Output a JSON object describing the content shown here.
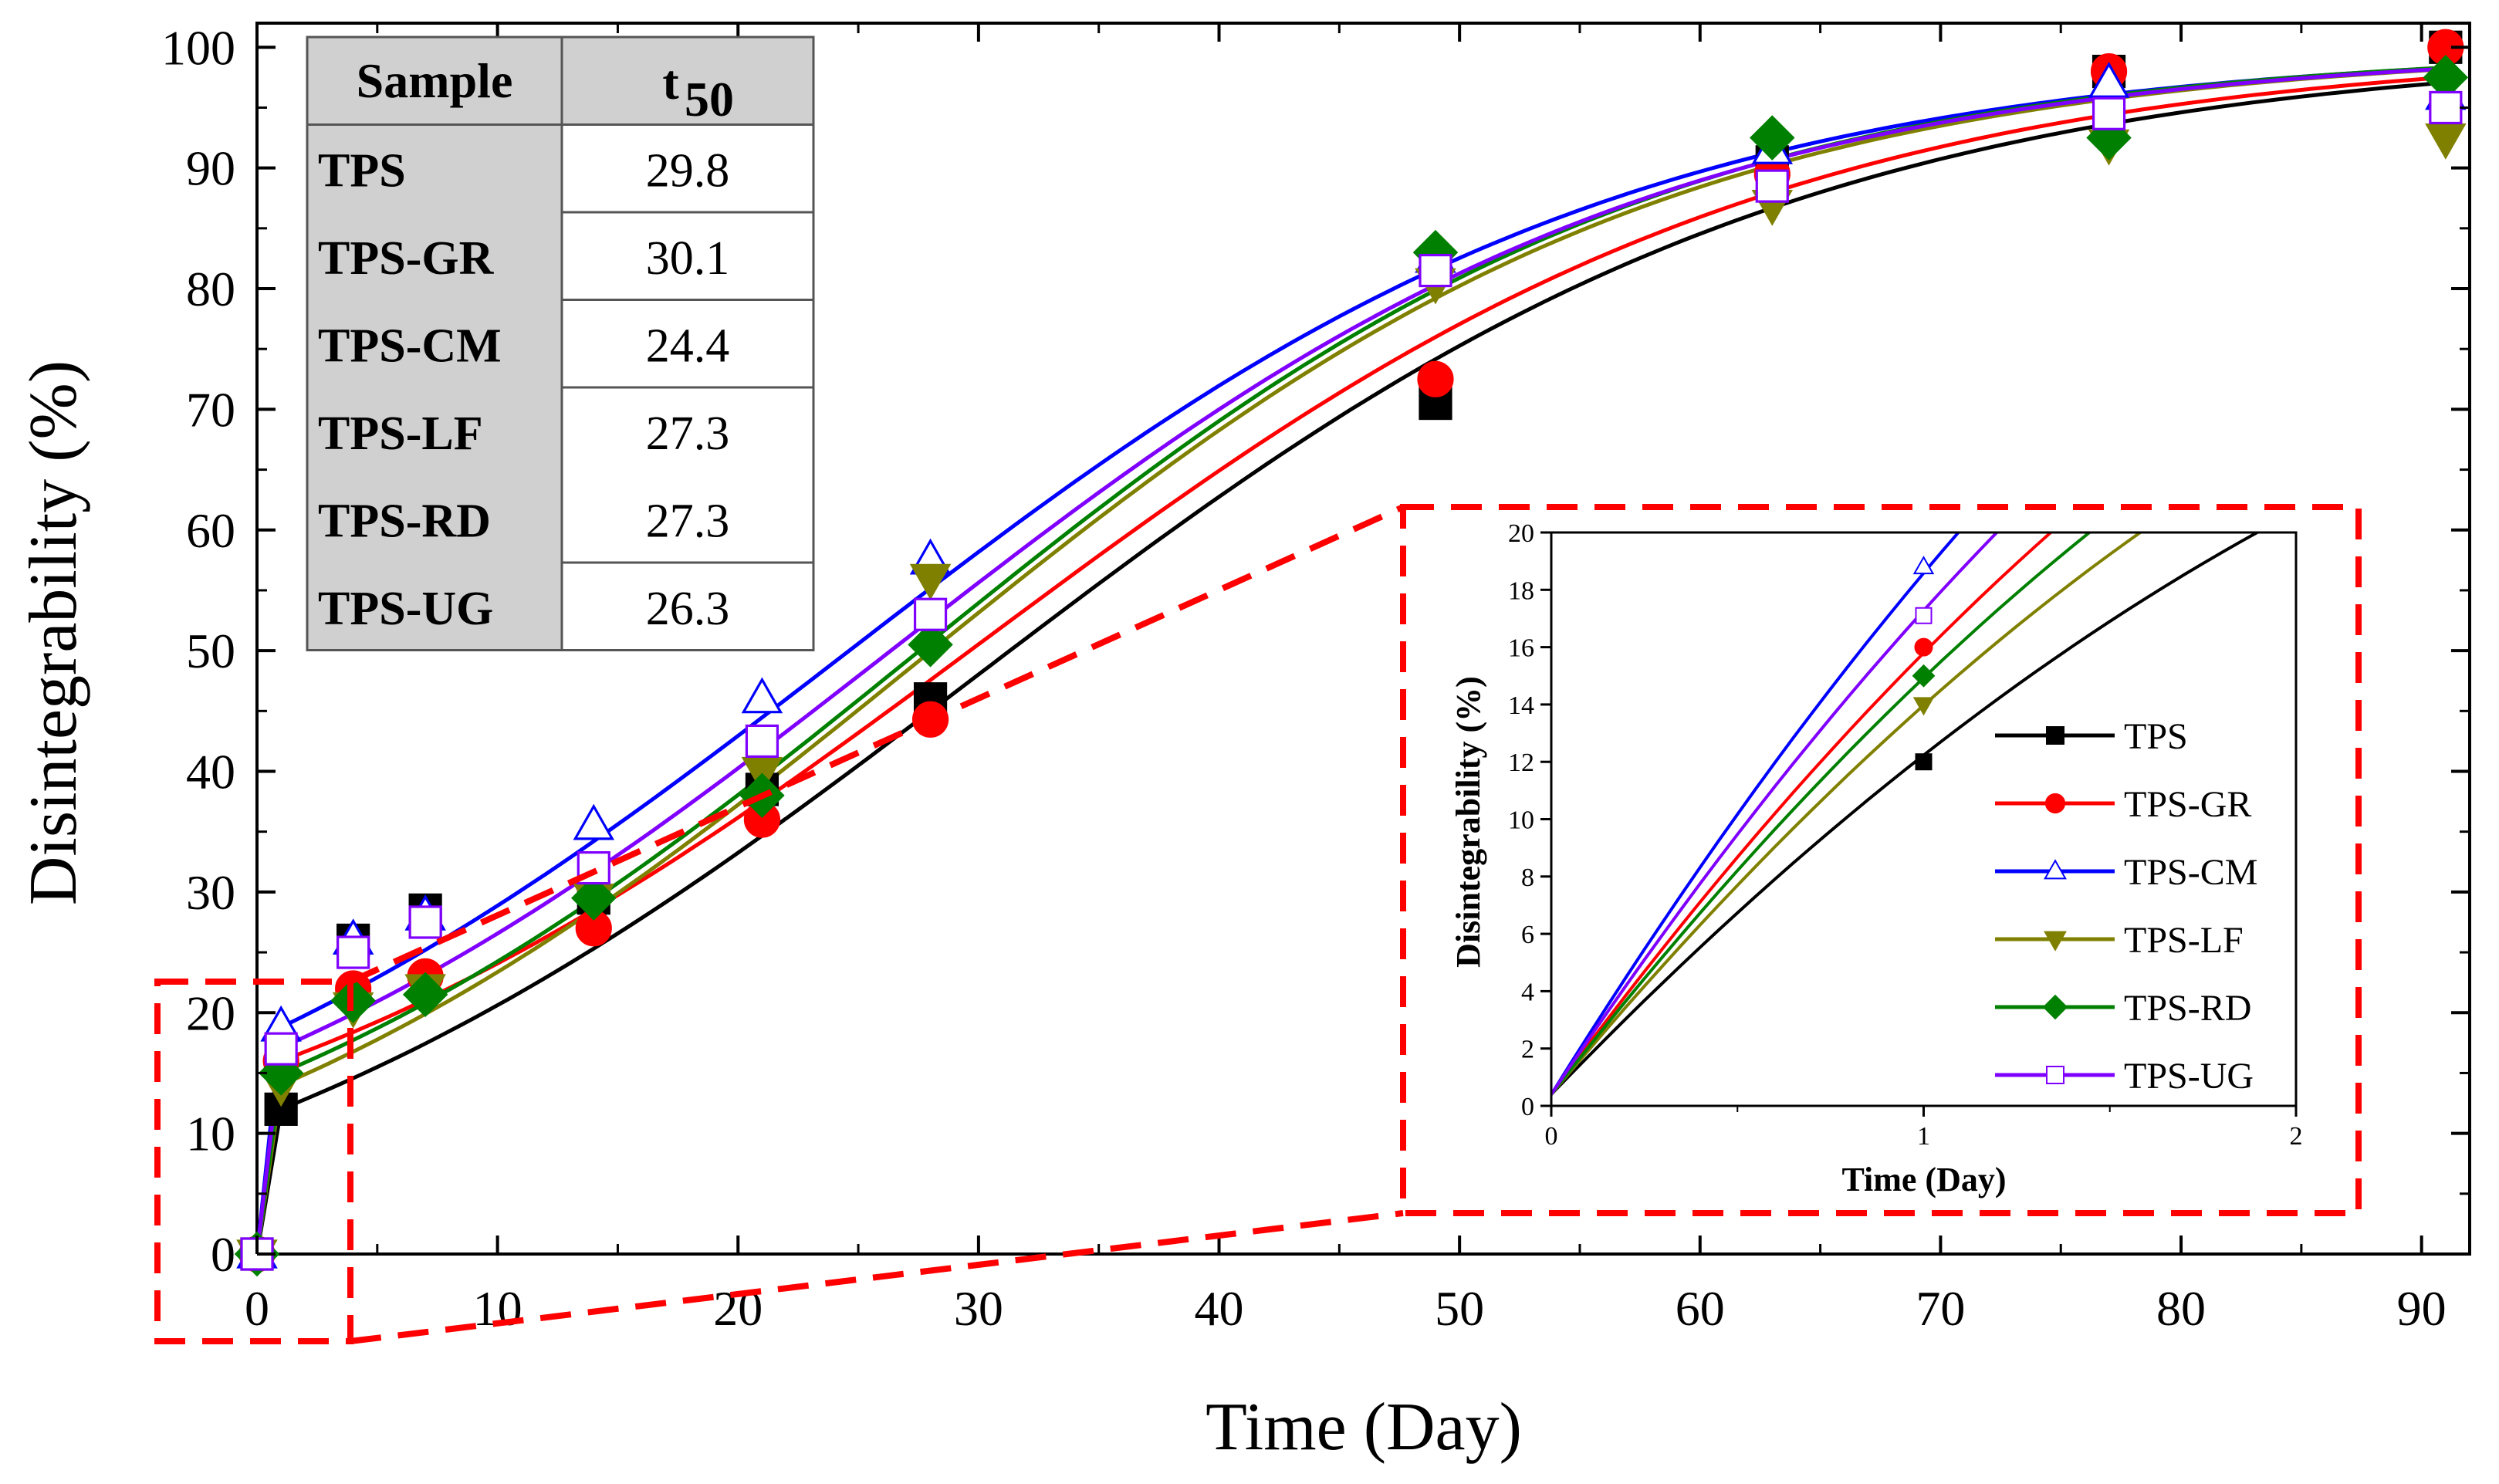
{
  "chart_data": [
    {
      "type": "scatter",
      "xlabel": "Time (Day)",
      "ylabel": "Disintegrability (%)",
      "xlim": [
        0,
        92
      ],
      "ylim": [
        0,
        102
      ],
      "xticks": [
        "0",
        "10",
        "20",
        "30",
        "40",
        "50",
        "60",
        "70",
        "80",
        "90"
      ],
      "yticks": [
        "0",
        "10",
        "20",
        "30",
        "40",
        "50",
        "60",
        "70",
        "80",
        "90",
        "100"
      ],
      "fit_lines": true,
      "series": [
        {
          "name": "TPS",
          "color": "#000000",
          "marker": "square-filled",
          "x": [
            0,
            1,
            4,
            7,
            14,
            21,
            28,
            49,
            63,
            77,
            91
          ],
          "y": [
            0,
            12,
            26,
            28.5,
            29.5,
            38.5,
            46,
            70.5,
            90.5,
            98,
            100
          ],
          "t50": 29.8
        },
        {
          "name": "TPS-GR",
          "color": "#ff0000",
          "marker": "circle-filled",
          "x": [
            0,
            1,
            4,
            7,
            14,
            21,
            28,
            49,
            63,
            77,
            91
          ],
          "y": [
            0,
            16,
            22,
            23,
            27,
            36,
            44.3,
            72.5,
            89.5,
            98,
            100
          ],
          "t50": 30.1
        },
        {
          "name": "TPS-CM",
          "color": "#0000ff",
          "marker": "triangle-up-open",
          "x": [
            0,
            1,
            4,
            7,
            14,
            21,
            28,
            49,
            63,
            77,
            91
          ],
          "y": [
            0,
            18.8,
            26,
            28,
            35.5,
            46,
            57.5,
            82.5,
            91.5,
            97,
            96
          ],
          "t50": 24.4
        },
        {
          "name": "TPS-LF",
          "color": "#808000",
          "marker": "triangle-down-filled",
          "x": [
            0,
            1,
            4,
            7,
            14,
            21,
            28,
            49,
            63,
            77,
            91
          ],
          "y": [
            0,
            14,
            20.5,
            22,
            29.5,
            40,
            56,
            80.5,
            87,
            92,
            92.5
          ],
          "t50": 27.3
        },
        {
          "name": "TPS-RD",
          "color": "#008000",
          "marker": "diamond-filled",
          "x": [
            0,
            1,
            4,
            7,
            14,
            21,
            28,
            49,
            63,
            77,
            91
          ],
          "y": [
            0,
            15,
            21,
            21.5,
            29.5,
            38,
            50.5,
            83,
            92.5,
            92.5,
            97.5
          ],
          "t50": 27.3
        },
        {
          "name": "TPS-UG",
          "color": "#8000ff",
          "marker": "square-open",
          "x": [
            0,
            1,
            4,
            7,
            14,
            21,
            28,
            49,
            63,
            77,
            91
          ],
          "y": [
            0,
            17,
            25,
            27.5,
            32,
            42.5,
            53,
            81.5,
            88.5,
            94.5,
            95
          ],
          "t50": 26.3
        }
      ]
    },
    {
      "type": "line",
      "xlabel": "Time (Day)",
      "ylabel": "Disintegrability (%)",
      "xlim": [
        0,
        2
      ],
      "ylim": [
        0,
        20
      ],
      "xticks": [
        "0",
        "1",
        "2"
      ],
      "yticks": [
        "0",
        "2",
        "4",
        "6",
        "8",
        "10",
        "12",
        "14",
        "16",
        "18",
        "20"
      ],
      "legend": "right",
      "series": [
        {
          "name": "TPS",
          "color": "#000000",
          "marker": "square-filled",
          "x": [
            1
          ],
          "y": [
            12
          ],
          "slope": 13.5
        },
        {
          "name": "TPS-GR",
          "color": "#ff0000",
          "marker": "circle-filled",
          "x": [
            1
          ],
          "y": [
            16
          ],
          "slope": 17.7
        },
        {
          "name": "TPS-CM",
          "color": "#0000ff",
          "marker": "triangle-up-open",
          "x": [
            1
          ],
          "y": [
            18.8
          ],
          "slope": 20.9
        },
        {
          "name": "TPS-LF",
          "color": "#808000",
          "marker": "triangle-down-filled",
          "x": [
            1
          ],
          "y": [
            14
          ],
          "slope": 15.6
        },
        {
          "name": "TPS-RD",
          "color": "#008000",
          "marker": "diamond-filled",
          "x": [
            1
          ],
          "y": [
            15
          ],
          "slope": 16.7
        },
        {
          "name": "TPS-UG",
          "color": "#8000ff",
          "marker": "square-open",
          "x": [
            1
          ],
          "y": [
            17.1
          ],
          "slope": 19.4
        }
      ]
    }
  ],
  "table": {
    "header_sample": "Sample",
    "header_t": "t",
    "header_sub": "50",
    "rows": [
      {
        "sample": "TPS",
        "t50": "29.8"
      },
      {
        "sample": "TPS-GR",
        "t50": "30.1"
      },
      {
        "sample": "TPS-CM",
        "t50": "24.4"
      },
      {
        "sample": "TPS-LF",
        "t50": "27.3"
      },
      {
        "sample": "TPS-RD",
        "t50": "27.3"
      },
      {
        "sample": "TPS-UG",
        "t50": "26.3"
      }
    ]
  }
}
